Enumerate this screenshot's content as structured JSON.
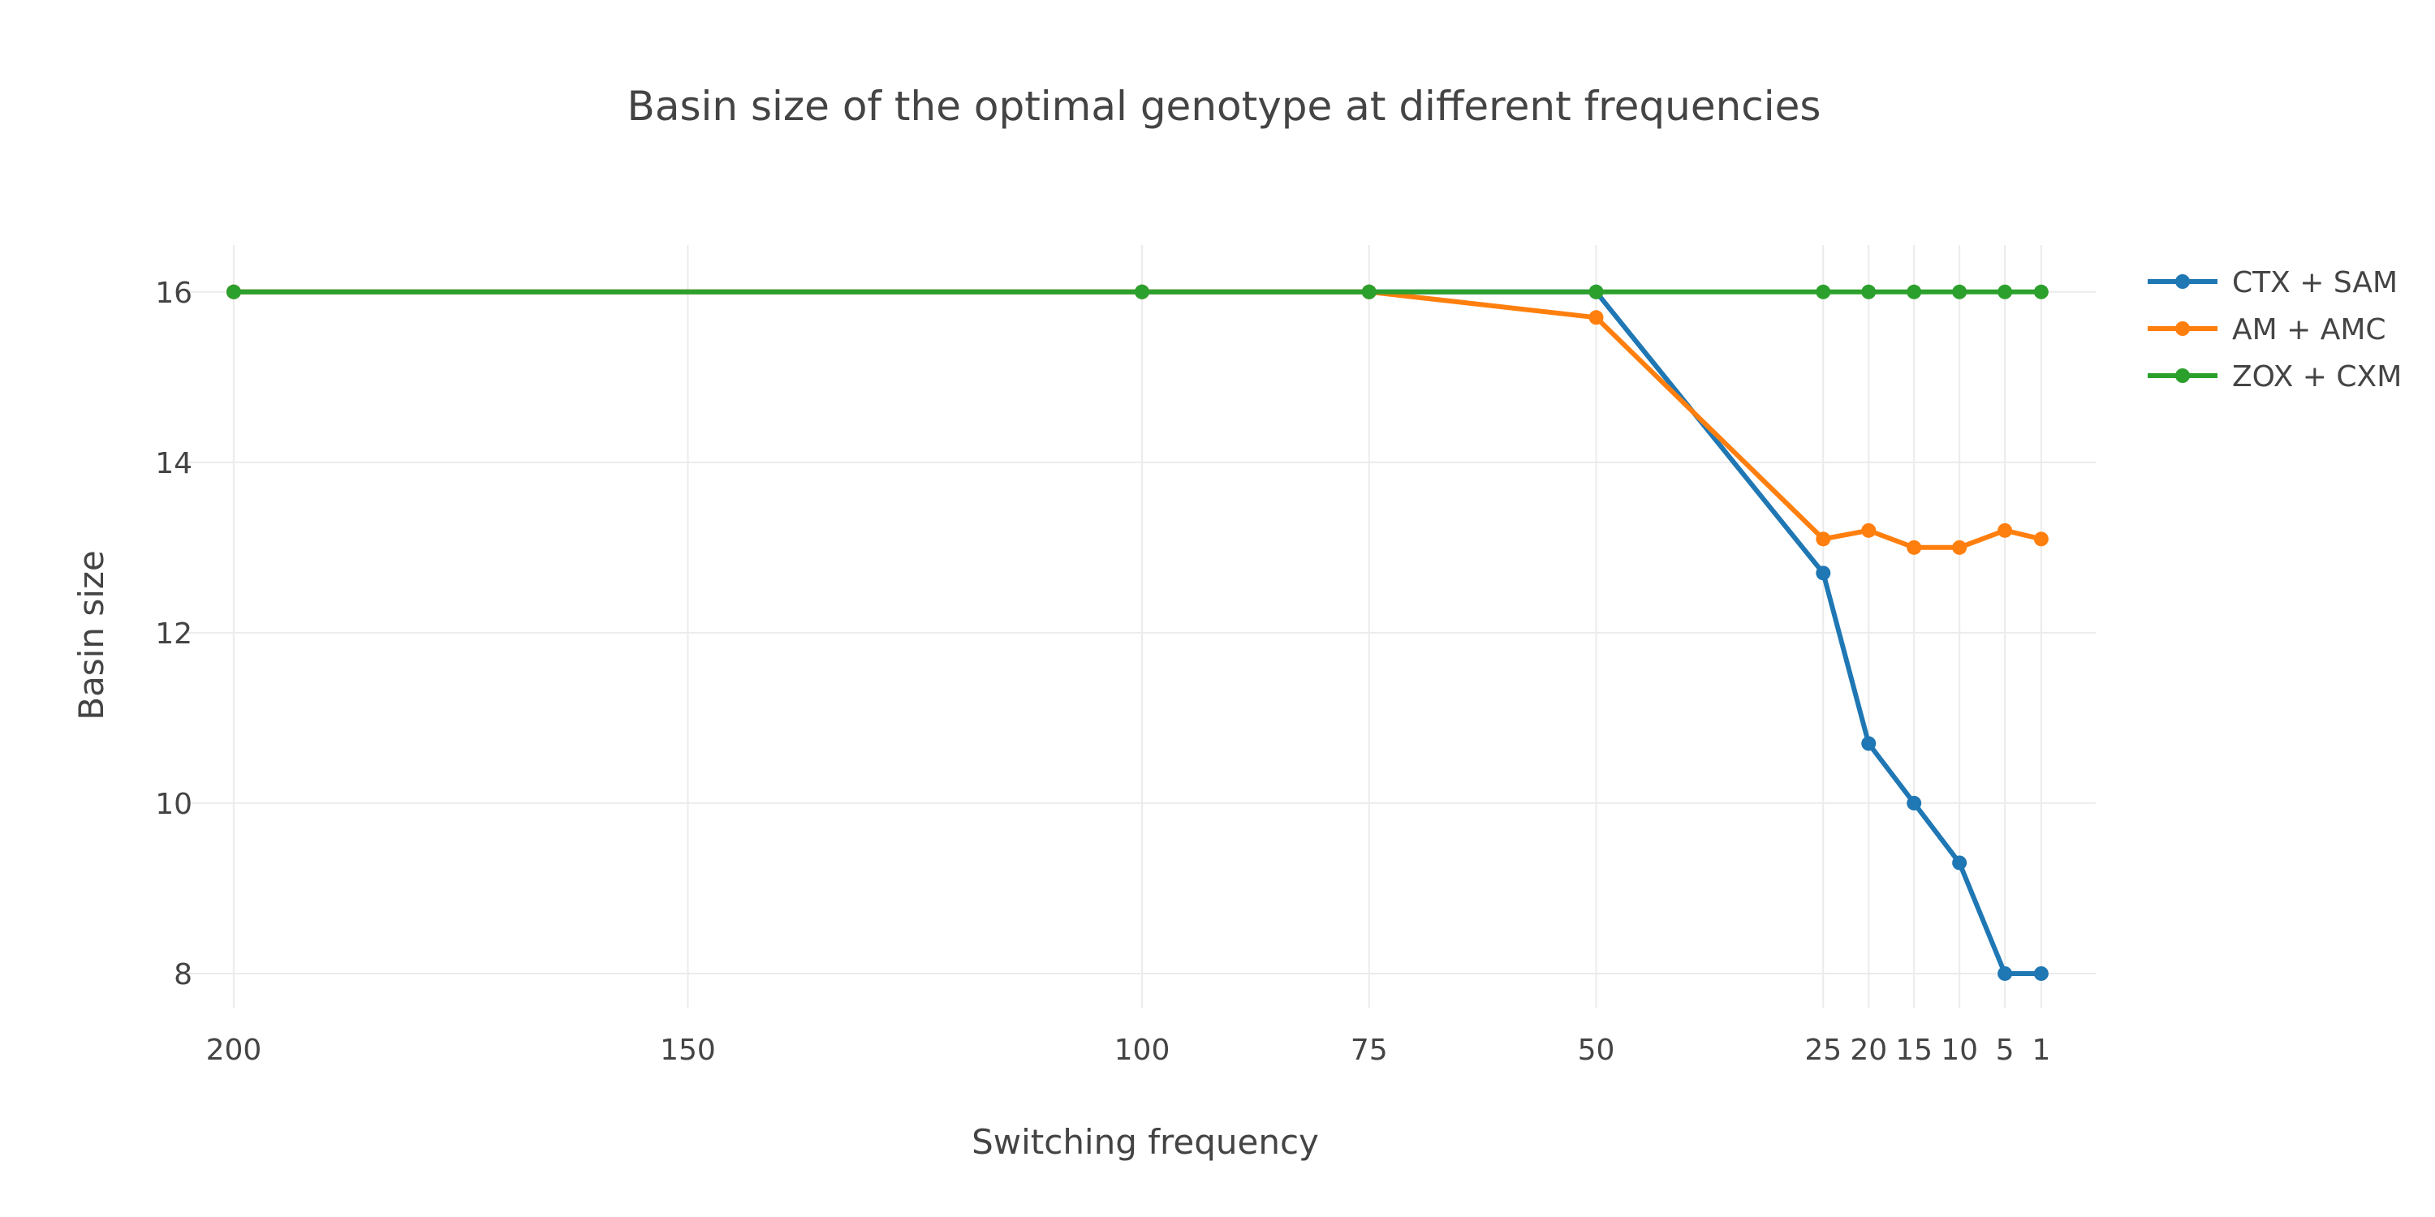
{
  "chart_data": {
    "type": "line",
    "title": "Basin size of the optimal genotype at different frequencies",
    "xlabel": "Switching frequency",
    "ylabel": "Basin size",
    "x_reversed": true,
    "xlim": [
      205,
      -5
    ],
    "ylim": [
      7.6,
      16.55
    ],
    "grid": true,
    "legend_position": "top-right",
    "x_ticks": [
      200,
      150,
      100,
      75,
      50,
      25,
      20,
      15,
      10,
      5,
      1
    ],
    "y_ticks": [
      8,
      10,
      12,
      14,
      16
    ],
    "series": [
      {
        "name": "CTX + SAM",
        "color": "#1f77b4",
        "x": [
          200,
          100,
          75,
          50,
          25,
          20,
          15,
          10,
          5,
          1
        ],
        "y": [
          16,
          16,
          16,
          16,
          12.7,
          10.7,
          10.0,
          9.3,
          8.0,
          8.0
        ]
      },
      {
        "name": "AM + AMC",
        "color": "#ff7f0e",
        "x": [
          200,
          100,
          75,
          50,
          25,
          20,
          15,
          10,
          5,
          1
        ],
        "y": [
          16,
          16,
          16,
          15.7,
          13.1,
          13.2,
          13.0,
          13.0,
          13.2,
          13.1
        ]
      },
      {
        "name": "ZOX + CXM",
        "color": "#2ca02c",
        "x": [
          200,
          100,
          75,
          50,
          25,
          20,
          15,
          10,
          5,
          1
        ],
        "y": [
          16,
          16,
          16,
          16,
          16,
          16,
          16,
          16,
          16,
          16
        ]
      }
    ]
  }
}
